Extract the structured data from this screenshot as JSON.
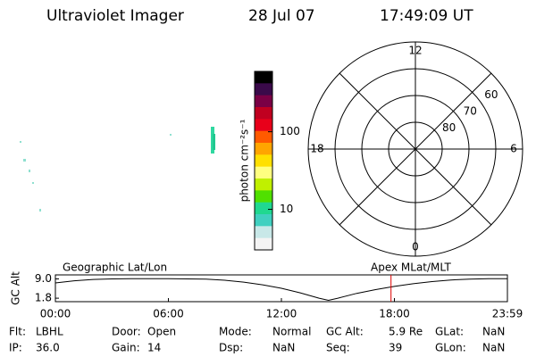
{
  "header": {
    "title": "Ultraviolet Imager",
    "date": "28 Jul 07",
    "time": "17:49:09 UT"
  },
  "colorbar": {
    "label": "photon cm⁻²s⁻¹",
    "log": true,
    "lim": [
      3,
      600
    ],
    "ticks": [
      10,
      100
    ],
    "colors": [
      "#000000",
      "#3a0a4a",
      "#7a0045",
      "#c00020",
      "#e8001a",
      "#ff5a00",
      "#ffa500",
      "#ffe000",
      "#ffff80",
      "#c0f000",
      "#50e000",
      "#20d890",
      "#40d0c0",
      "#c8e8e8",
      "#f4f4f4"
    ]
  },
  "polar": {
    "rlim": [
      90,
      50
    ],
    "rings": [
      60,
      70,
      80
    ],
    "mlt": [
      12,
      6,
      0,
      18
    ]
  },
  "orbit_plot": {
    "ylabel": "GC Alt",
    "left_label": "Geographic Lat/Lon",
    "right_label": "Apex MLat/MLT",
    "xlim": [
      0,
      24
    ],
    "ylim": [
      0.5,
      10.5
    ],
    "xticks": [
      {
        "value": 0,
        "label": "00:00"
      },
      {
        "value": 6,
        "label": "06:00"
      },
      {
        "value": 12,
        "label": "12:00"
      },
      {
        "value": 18,
        "label": "18:00"
      },
      {
        "value": 24,
        "label": "23:59"
      }
    ],
    "yticks": [
      {
        "value": 9.0,
        "label": "9.0"
      },
      {
        "value": 1.8,
        "label": "1.8"
      }
    ],
    "x": [
      0,
      1,
      2,
      3,
      4,
      6,
      8,
      9,
      10,
      11,
      12,
      13,
      14,
      14.5,
      15,
      16,
      17,
      18,
      19,
      20,
      21,
      22,
      23,
      24
    ],
    "values": [
      7.5,
      8.3,
      8.8,
      9.0,
      9.1,
      9.1,
      8.9,
      8.5,
      7.8,
      6.8,
      5.5,
      3.8,
      1.8,
      1.0,
      1.8,
      3.6,
      5.0,
      6.2,
      7.2,
      8.0,
      8.6,
      8.9,
      9.1,
      9.1
    ],
    "color": "#000000",
    "marker_x": 17.82,
    "marker_color": "#e00000"
  },
  "status": [
    [
      {
        "label": "Flt:",
        "value": "LBHL"
      },
      {
        "label": "Door:",
        "value": "Open"
      },
      {
        "label": "Mode:",
        "value": "Normal"
      },
      {
        "label": "GC Alt:",
        "value": "5.9 Re"
      },
      {
        "label": "GLat:",
        "value": "NaN"
      }
    ],
    [
      {
        "label": "IP:",
        "value": "36.0"
      },
      {
        "label": "Gain:",
        "value": "14"
      },
      {
        "label": "Dsp:",
        "value": "NaN"
      },
      {
        "label": "Seq:",
        "value": "39"
      },
      {
        "label": "GLon:",
        "value": "NaN"
      }
    ]
  ]
}
